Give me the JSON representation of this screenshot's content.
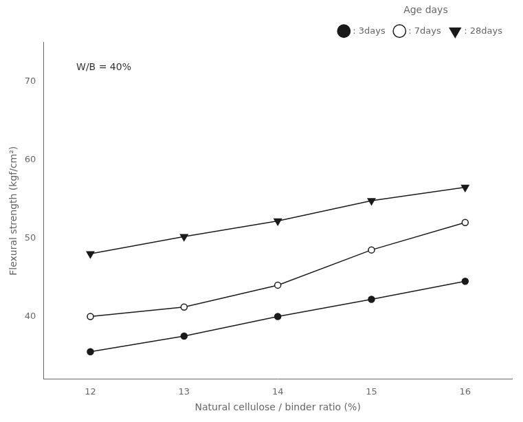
{
  "chart_data": {
    "type": "line",
    "x": [
      12,
      13,
      14,
      15,
      16
    ],
    "series": [
      {
        "name": ": 3days",
        "color": "#1a1a1a",
        "marker": "circle",
        "values": [
          35.5,
          37.5,
          40.0,
          42.2,
          44.5
        ]
      },
      {
        "name": ": 7days",
        "color": "#1a1a1a",
        "marker": "circle_open",
        "values": [
          40.0,
          41.2,
          44.0,
          48.5,
          52.0
        ]
      },
      {
        "name": ": 28days",
        "color": "#1a1a1a",
        "marker": "triangle_down",
        "values": [
          48.0,
          50.2,
          52.2,
          54.8,
          56.5
        ]
      }
    ],
    "xlabel": "Natural cellulose / binder ratio (%)",
    "ylabel": "Flexural strength (kgf/cm²)",
    "annotation": "W/B = 40%",
    "legend_title": "Age days",
    "legend": "upper right",
    "xlim": [
      11.5,
      16.5
    ],
    "ylim": [
      32,
      75
    ],
    "xticks": [
      12,
      13,
      14,
      15,
      16
    ],
    "yticks": [
      40,
      50,
      60,
      70
    ],
    "grid": false
  }
}
